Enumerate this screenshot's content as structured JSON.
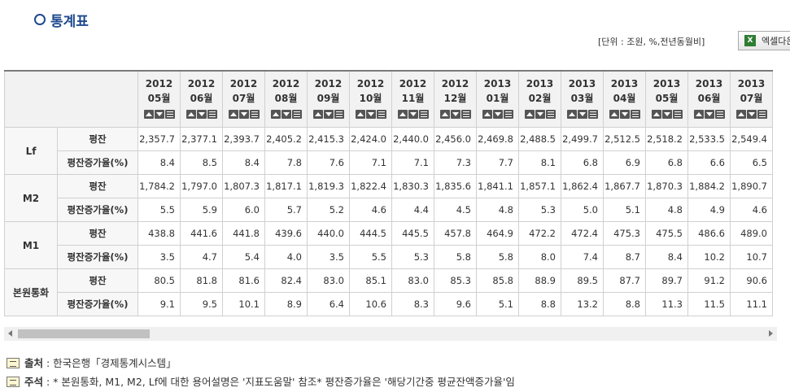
{
  "title": "통계표",
  "unit_text": "[단위 : 조원, %,전년동월비]",
  "excel_label": "엑셀다운",
  "columns": [
    {
      "year": "2012",
      "month": "05월"
    },
    {
      "year": "2012",
      "month": "06월"
    },
    {
      "year": "2012",
      "month": "07월"
    },
    {
      "year": "2012",
      "month": "08월"
    },
    {
      "year": "2012",
      "month": "09월"
    },
    {
      "year": "2012",
      "month": "10월"
    },
    {
      "year": "2012",
      "month": "11월"
    },
    {
      "year": "2012",
      "month": "12월"
    },
    {
      "year": "2013",
      "month": "01월"
    },
    {
      "year": "2013",
      "month": "02월"
    },
    {
      "year": "2013",
      "month": "03월"
    },
    {
      "year": "2013",
      "month": "04월"
    },
    {
      "year": "2013",
      "month": "05월"
    },
    {
      "year": "2013",
      "month": "06월"
    },
    {
      "year": "2013",
      "month": "07월"
    }
  ],
  "groups": [
    {
      "name": "Lf",
      "rows": [
        {
          "label": "평잔",
          "values": [
            "2,357.7",
            "2,377.1",
            "2,393.7",
            "2,405.2",
            "2,415.3",
            "2,424.0",
            "2,440.0",
            "2,456.0",
            "2,469.8",
            "2,488.5",
            "2,499.7",
            "2,512.5",
            "2,518.2",
            "2,533.5",
            "2,549.4"
          ]
        },
        {
          "label": "평잔증가율(%)",
          "values": [
            "8.4",
            "8.5",
            "8.4",
            "7.8",
            "7.6",
            "7.1",
            "7.1",
            "7.3",
            "7.7",
            "8.1",
            "6.8",
            "6.9",
            "6.8",
            "6.6",
            "6.5"
          ]
        }
      ]
    },
    {
      "name": "M2",
      "rows": [
        {
          "label": "평잔",
          "values": [
            "1,784.2",
            "1,797.0",
            "1,807.3",
            "1,817.1",
            "1,819.3",
            "1,822.4",
            "1,830.3",
            "1,835.6",
            "1,841.1",
            "1,857.1",
            "1,862.4",
            "1,867.7",
            "1,870.3",
            "1,884.2",
            "1,890.7"
          ]
        },
        {
          "label": "평잔증가율(%)",
          "values": [
            "5.5",
            "5.9",
            "6.0",
            "5.7",
            "5.2",
            "4.6",
            "4.4",
            "4.5",
            "4.8",
            "5.3",
            "5.0",
            "5.1",
            "4.8",
            "4.9",
            "4.6"
          ]
        }
      ]
    },
    {
      "name": "M1",
      "rows": [
        {
          "label": "평잔",
          "values": [
            "438.8",
            "441.6",
            "441.8",
            "439.6",
            "440.0",
            "444.5",
            "445.5",
            "457.8",
            "464.9",
            "472.2",
            "472.4",
            "475.3",
            "475.5",
            "486.6",
            "489.0"
          ]
        },
        {
          "label": "평잔증가율(%)",
          "values": [
            "3.5",
            "4.7",
            "5.4",
            "4.0",
            "3.5",
            "5.5",
            "5.3",
            "5.8",
            "5.8",
            "8.0",
            "7.4",
            "8.7",
            "8.4",
            "10.2",
            "10.7"
          ]
        }
      ]
    },
    {
      "name": "본원통화",
      "rows": [
        {
          "label": "평잔",
          "values": [
            "80.5",
            "81.8",
            "81.6",
            "82.4",
            "83.0",
            "85.1",
            "83.0",
            "85.3",
            "85.8",
            "88.9",
            "89.5",
            "87.7",
            "89.7",
            "91.2",
            "90.6"
          ]
        },
        {
          "label": "평잔증가율(%)",
          "values": [
            "9.1",
            "9.5",
            "10.1",
            "8.9",
            "6.4",
            "10.6",
            "8.3",
            "9.6",
            "5.1",
            "8.8",
            "13.2",
            "8.8",
            "11.3",
            "11.5",
            "11.1"
          ]
        }
      ]
    }
  ],
  "source_label": "출처",
  "source_text": ": 한국은행「경제통계시스템」",
  "note_label": "주석",
  "note_text": ": * 본원통화, M1, M2, Lf에 대한 용어설명은 '지표도움말' 참조* 평잔증가율은 '해당기간중 평균잔액증가율'임"
}
